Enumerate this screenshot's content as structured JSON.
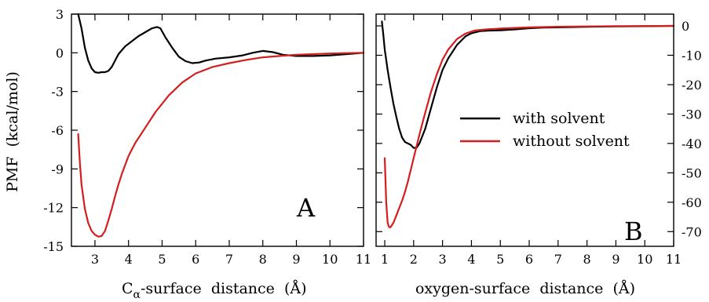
{
  "chart_data": [
    {
      "type": "line",
      "panel_label": "A",
      "xlabel_main": "C",
      "xlabel_sub": "α",
      "xlabel_rest": "-surface  distance  (Å)",
      "ylabel": "PMF  (kcal/mol)",
      "xlim": [
        2.3,
        11
      ],
      "ylim": [
        -15,
        3
      ],
      "xticks": [
        3,
        4,
        5,
        6,
        7,
        8,
        9,
        10,
        11
      ],
      "yticks": [
        3,
        0,
        -3,
        -6,
        -9,
        -12,
        -15
      ],
      "y_axis_side": "left",
      "series": [
        {
          "legend_key": "with solvent",
          "color": "#000000",
          "x": [
            2.5,
            2.6,
            2.7,
            2.8,
            2.9,
            3.0,
            3.1,
            3.2,
            3.3,
            3.4,
            3.5,
            3.7,
            3.9,
            4.1,
            4.3,
            4.5,
            4.7,
            4.85,
            4.95,
            5.1,
            5.3,
            5.5,
            5.7,
            5.9,
            6.1,
            6.3,
            6.6,
            7.0,
            7.4,
            7.7,
            8.0,
            8.3,
            8.6,
            9.0,
            9.5,
            10.0,
            10.5,
            11.0
          ],
          "y": [
            3.0,
            1.9,
            0.4,
            -0.6,
            -1.2,
            -1.5,
            -1.55,
            -1.5,
            -1.5,
            -1.4,
            -1.1,
            -0.1,
            0.5,
            0.9,
            1.3,
            1.6,
            1.9,
            2.0,
            1.9,
            1.2,
            0.4,
            -0.3,
            -0.65,
            -0.8,
            -0.75,
            -0.6,
            -0.45,
            -0.35,
            -0.2,
            0.0,
            0.15,
            0.05,
            -0.15,
            -0.25,
            -0.25,
            -0.2,
            -0.1,
            0.0
          ]
        },
        {
          "legend_key": "without solvent",
          "color": "#d41e1e",
          "x": [
            2.5,
            2.55,
            2.6,
            2.7,
            2.8,
            2.9,
            3.0,
            3.1,
            3.2,
            3.3,
            3.4,
            3.5,
            3.6,
            3.7,
            3.8,
            4.0,
            4.2,
            4.5,
            4.8,
            5.2,
            5.6,
            6.0,
            6.5,
            7.0,
            7.5,
            8.0,
            8.5,
            9.0,
            9.5,
            10.0,
            10.5,
            11.0
          ],
          "y": [
            -6.3,
            -8.5,
            -10.2,
            -12.1,
            -13.2,
            -13.8,
            -14.1,
            -14.25,
            -14.2,
            -13.8,
            -13.0,
            -12.1,
            -11.1,
            -10.2,
            -9.4,
            -8.0,
            -7.0,
            -5.8,
            -4.6,
            -3.3,
            -2.3,
            -1.6,
            -1.1,
            -0.8,
            -0.55,
            -0.35,
            -0.25,
            -0.15,
            -0.1,
            -0.05,
            -0.02,
            0.0
          ]
        }
      ]
    },
    {
      "type": "line",
      "panel_label": "B",
      "xlabel": "oxygen-surface  distance  (Å)",
      "xlim": [
        0.7,
        11
      ],
      "ylim": [
        -75,
        4
      ],
      "xticks": [
        1,
        2,
        3,
        4,
        5,
        6,
        7,
        8,
        9,
        10,
        11
      ],
      "yticks": [
        0,
        -10,
        -20,
        -30,
        -40,
        -50,
        -60,
        -70
      ],
      "y_axis_side": "right",
      "legend": {
        "placement": "center-right",
        "entries": [
          {
            "label": "with solvent",
            "color": "#000000"
          },
          {
            "label": "without solvent",
            "color": "#d41e1e"
          }
        ]
      },
      "series": [
        {
          "legend_key": "with solvent",
          "color": "#000000",
          "x": [
            0.9,
            0.95,
            1.0,
            1.1,
            1.2,
            1.3,
            1.4,
            1.5,
            1.6,
            1.7,
            1.8,
            1.9,
            2.0,
            2.1,
            2.2,
            2.4,
            2.6,
            2.8,
            3.0,
            3.2,
            3.5,
            3.8,
            4.0,
            4.3,
            4.6,
            5.0,
            5.5,
            6.0,
            6.5,
            7.0,
            8.0,
            9.0,
            10.0,
            11.0
          ],
          "y": [
            1.5,
            -3.0,
            -8.0,
            -15.0,
            -21.0,
            -26.5,
            -31.0,
            -35.0,
            -38.0,
            -39.5,
            -40.0,
            -40.5,
            -41.5,
            -41.5,
            -40.0,
            -35.0,
            -28.0,
            -21.0,
            -15.0,
            -11.0,
            -6.5,
            -3.5,
            -2.5,
            -1.8,
            -1.6,
            -1.5,
            -1.2,
            -0.8,
            -0.6,
            -0.5,
            -0.3,
            -0.2,
            -0.1,
            0.0
          ]
        },
        {
          "legend_key": "without solvent",
          "color": "#d41e1e",
          "x": [
            1.0,
            1.05,
            1.1,
            1.15,
            1.2,
            1.3,
            1.4,
            1.5,
            1.6,
            1.7,
            1.8,
            2.0,
            2.2,
            2.4,
            2.6,
            2.8,
            3.0,
            3.2,
            3.5,
            3.8,
            4.1,
            4.5,
            5.0,
            5.5,
            6.0,
            6.5,
            7.0,
            8.0,
            9.0,
            10.0,
            11.0
          ],
          "y": [
            -45.0,
            -60.0,
            -67.0,
            -68.5,
            -68.5,
            -67.0,
            -64.5,
            -62.0,
            -59.5,
            -56.5,
            -53.0,
            -45.0,
            -37.0,
            -29.5,
            -22.5,
            -16.5,
            -11.5,
            -8.0,
            -4.5,
            -2.6,
            -1.6,
            -1.2,
            -0.9,
            -0.7,
            -0.5,
            -0.4,
            -0.3,
            -0.2,
            -0.1,
            -0.05,
            0.0
          ]
        }
      ]
    }
  ]
}
